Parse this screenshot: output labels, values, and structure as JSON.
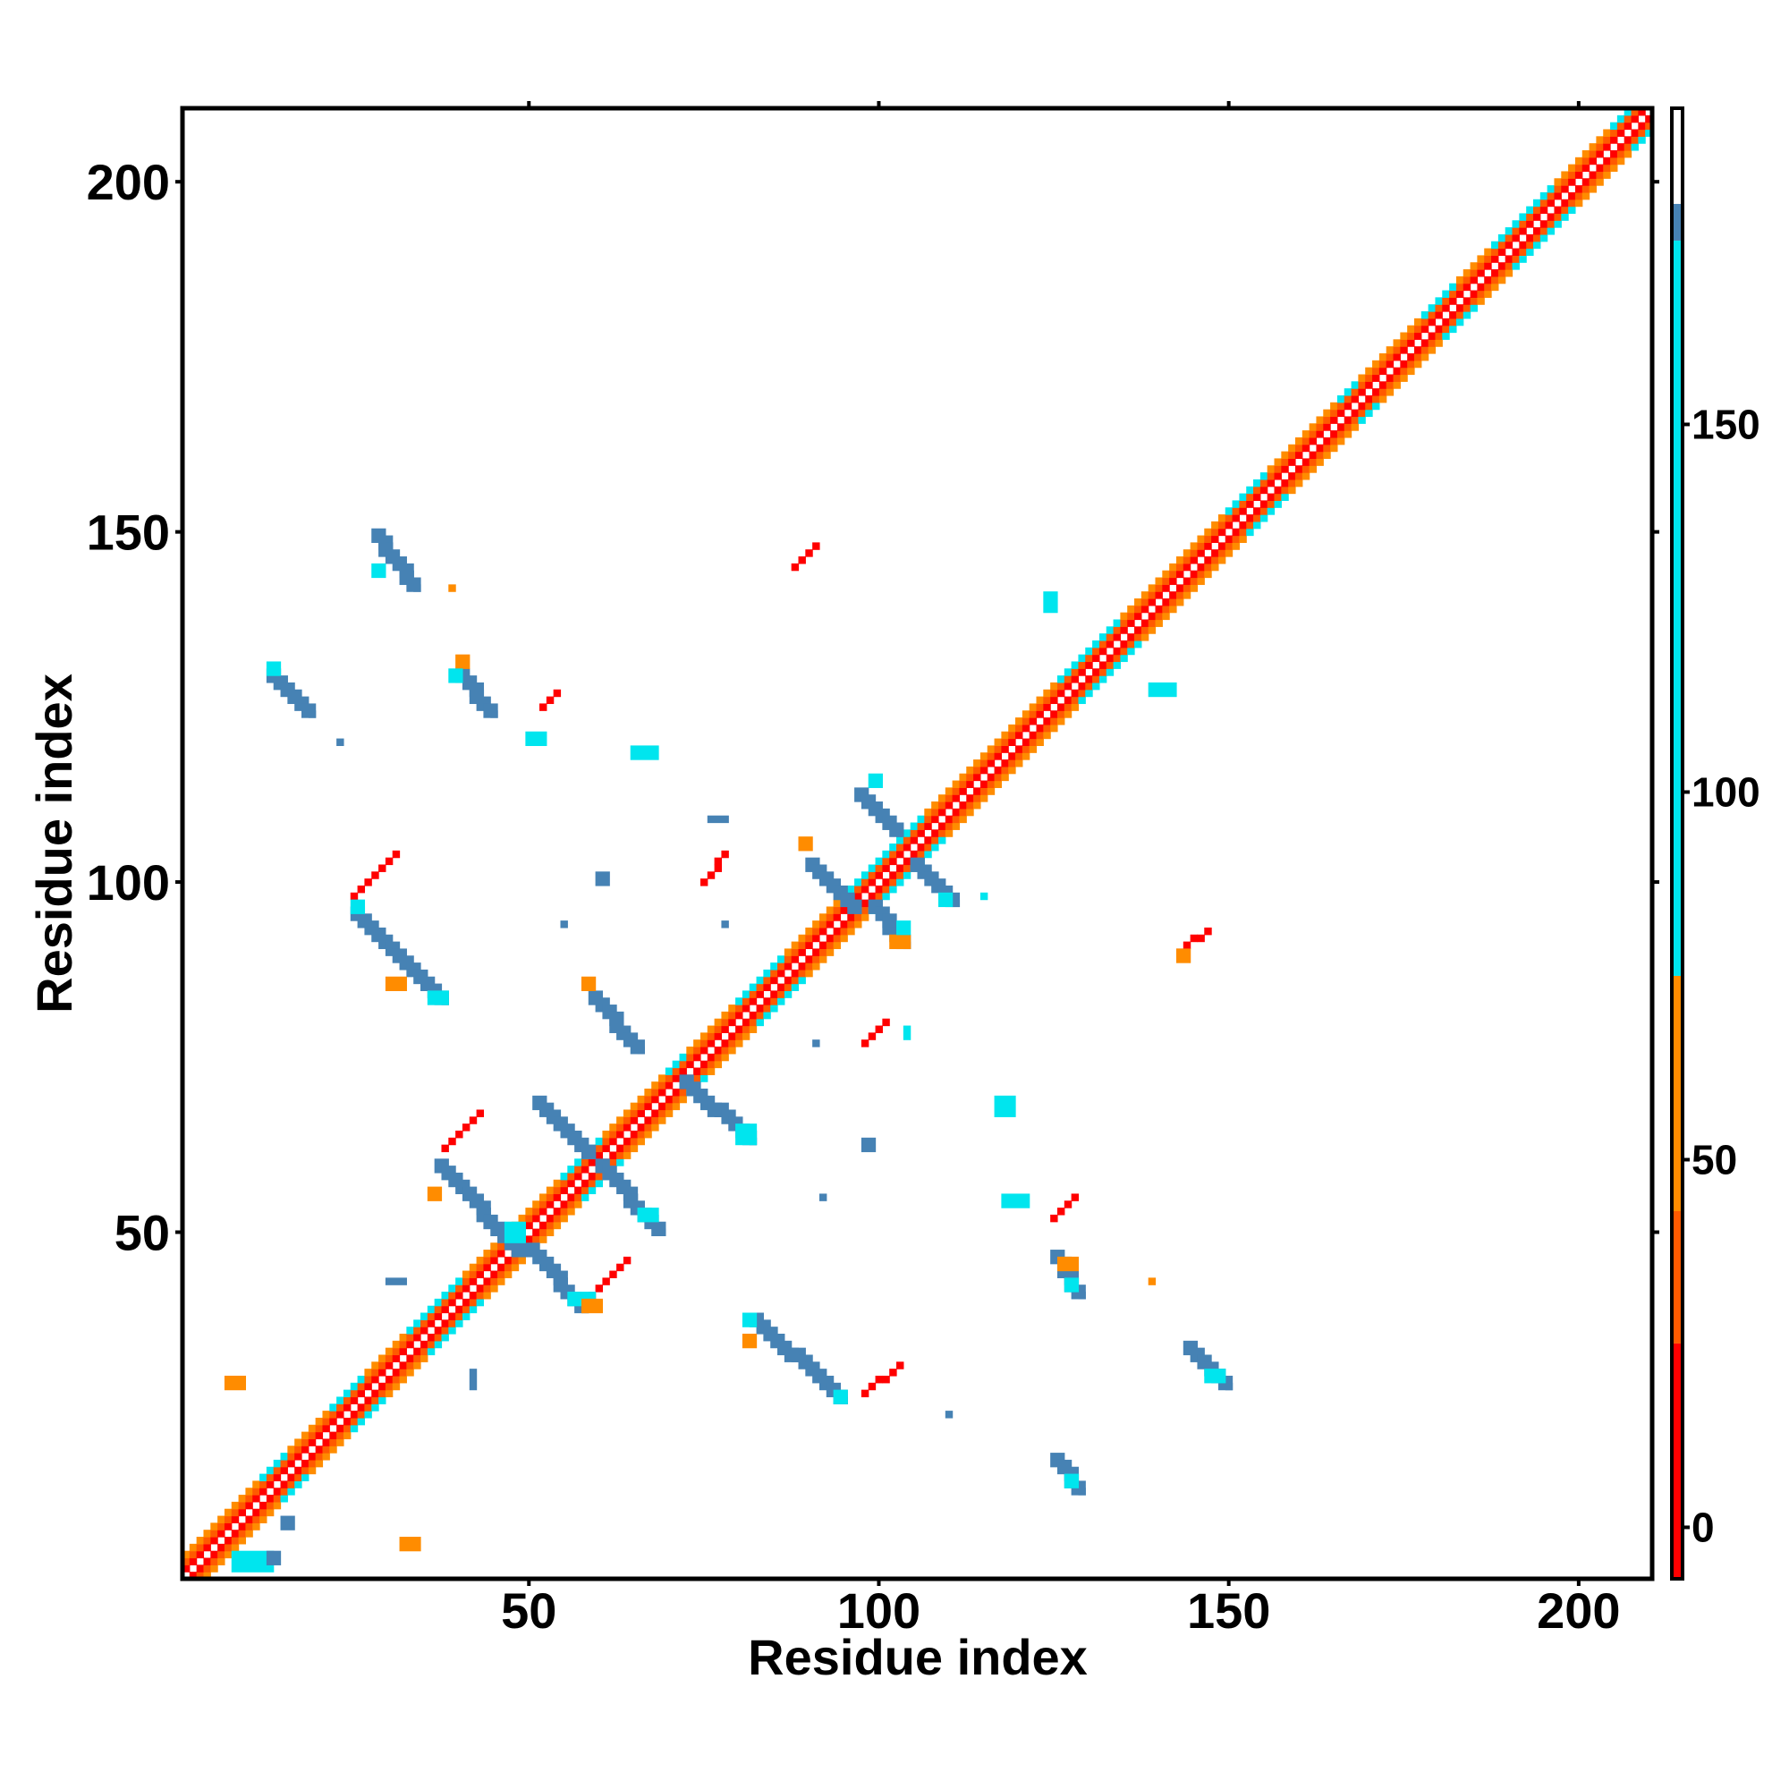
{
  "chart_data": {
    "type": "heatmap",
    "title": "",
    "xlabel": "Residue index",
    "ylabel": "Residue index",
    "xlim": [
      1,
      210
    ],
    "ylim": [
      1,
      210
    ],
    "xticks": [
      50,
      100,
      150,
      200
    ],
    "yticks": [
      50,
      100,
      150,
      200
    ],
    "grid": false,
    "legend": "none",
    "colorbar": {
      "ticks": [
        0,
        50,
        100,
        150
      ],
      "range": [
        -7,
        193
      ],
      "bands": [
        {
          "from": -7,
          "to": 25,
          "color": "#ff0000"
        },
        {
          "from": 25,
          "to": 43,
          "color": "#ff5a00"
        },
        {
          "from": 43,
          "to": 75,
          "color": "#ff8c00"
        },
        {
          "from": 75,
          "to": 175,
          "color": "#00e5ee"
        },
        {
          "from": 175,
          "to": 180,
          "color": "#4682b4"
        },
        {
          "from": 180,
          "to": 193,
          "color": "#ffffff"
        }
      ]
    },
    "colors": {
      "diag_core": "#ff0000",
      "diag_mid": "#ff5a00",
      "diag_outer": "#ff8c00",
      "contact_strong": "#4682b4",
      "contact_weak": "#00e5ee",
      "short_range": "#ff0000",
      "short_range_orange": "#ff8c00"
    },
    "diagonal_band": {
      "from": 1,
      "to": 210
    },
    "cyan_on_diagonal": [
      [
        12,
        15
      ],
      [
        22,
        26
      ],
      [
        33,
        40
      ],
      [
        55,
        60
      ],
      [
        70,
        72
      ],
      [
        80,
        86
      ],
      [
        96,
        106
      ],
      [
        126,
        134
      ],
      [
        150,
        155
      ],
      [
        166,
        168
      ],
      [
        178,
        182
      ],
      [
        188,
        196
      ],
      [
        205,
        210
      ]
    ],
    "segments": [
      {
        "x1": 28,
        "y1": 150,
        "x2": 33,
        "y2": 143,
        "c": "contact_strong"
      },
      {
        "x1": 13,
        "y1": 130,
        "x2": 18,
        "y2": 125,
        "c": "contact_strong"
      },
      {
        "x1": 40,
        "y1": 130,
        "x2": 44,
        "y2": 125,
        "c": "contact_strong"
      },
      {
        "x1": 25,
        "y1": 96,
        "x2": 37,
        "y2": 84,
        "c": "contact_strong"
      },
      {
        "x1": 51,
        "y1": 69,
        "x2": 58,
        "y2": 62,
        "c": "contact_strong"
      },
      {
        "x1": 37,
        "y1": 60,
        "x2": 48,
        "y2": 48,
        "c": "contact_strong"
      },
      {
        "x1": 50,
        "y1": 48,
        "x2": 57,
        "y2": 40,
        "c": "contact_strong"
      },
      {
        "x1": 60,
        "y1": 60,
        "x2": 68,
        "y2": 51,
        "c": "contact_strong"
      },
      {
        "x1": 59,
        "y1": 84,
        "x2": 65,
        "y2": 77,
        "c": "contact_strong"
      },
      {
        "x1": 72,
        "y1": 72,
        "x2": 81,
        "y2": 64,
        "c": "contact_strong"
      },
      {
        "x1": 82,
        "y1": 38,
        "x2": 94,
        "y2": 27,
        "c": "contact_strong"
      },
      {
        "x1": 90,
        "y1": 103,
        "x2": 96,
        "y2": 97,
        "c": "contact_strong"
      },
      {
        "x1": 99,
        "y1": 97,
        "x2": 103,
        "y2": 92,
        "c": "contact_strong"
      },
      {
        "x1": 97,
        "y1": 113,
        "x2": 102,
        "y2": 108,
        "c": "contact_strong"
      },
      {
        "x1": 105,
        "y1": 103,
        "x2": 110,
        "y2": 98,
        "c": "contact_strong"
      },
      {
        "x1": 125,
        "y1": 47,
        "x2": 128,
        "y2": 42,
        "c": "contact_strong"
      },
      {
        "x1": 144,
        "y1": 34,
        "x2": 149,
        "y2": 29,
        "c": "contact_strong"
      },
      {
        "x1": 125,
        "y1": 18,
        "x2": 128,
        "y2": 14,
        "c": "contact_strong"
      },
      {
        "x1": 91,
        "y1": 148,
        "x2": 88,
        "y2": 145,
        "c": "short_range"
      },
      {
        "x1": 31,
        "y1": 104,
        "x2": 25,
        "y2": 98,
        "c": "short_range"
      },
      {
        "x1": 43,
        "y1": 67,
        "x2": 38,
        "y2": 62,
        "c": "short_range"
      },
      {
        "x1": 64,
        "y1": 46,
        "x2": 58,
        "y2": 40,
        "c": "short_range"
      },
      {
        "x1": 103,
        "y1": 31,
        "x2": 98,
        "y2": 27,
        "c": "short_range"
      },
      {
        "x1": 147,
        "y1": 93,
        "x2": 143,
        "y2": 90,
        "c": "short_range"
      },
      {
        "x1": 128,
        "y1": 55,
        "x2": 125,
        "y2": 52,
        "c": "short_range"
      },
      {
        "x1": 54,
        "y1": 127,
        "x2": 52,
        "y2": 125,
        "c": "short_range"
      },
      {
        "x1": 78,
        "y1": 104,
        "x2": 75,
        "y2": 100,
        "c": "short_range"
      },
      {
        "x1": 101,
        "y1": 80,
        "x2": 98,
        "y2": 77,
        "c": "short_range"
      }
    ],
    "patches": [
      {
        "x": 8,
        "y": 2,
        "w": 6,
        "h": 3,
        "c": "contact_weak"
      },
      {
        "x": 13,
        "y": 3,
        "w": 2,
        "h": 2,
        "c": "contact_strong"
      },
      {
        "x": 28,
        "y": 144,
        "w": 2,
        "h": 2,
        "c": "contact_weak"
      },
      {
        "x": 13,
        "y": 130,
        "w": 2,
        "h": 2,
        "c": "contact_weak"
      },
      {
        "x": 40,
        "y": 131,
        "w": 2,
        "h": 2,
        "c": "short_range_orange"
      },
      {
        "x": 39,
        "y": 129,
        "w": 2,
        "h": 2,
        "c": "contact_weak"
      },
      {
        "x": 30,
        "y": 85,
        "w": 3,
        "h": 2,
        "c": "short_range_orange"
      },
      {
        "x": 36,
        "y": 83,
        "w": 3,
        "h": 2,
        "c": "contact_weak"
      },
      {
        "x": 25,
        "y": 96,
        "w": 2,
        "h": 2,
        "c": "contact_weak"
      },
      {
        "x": 58,
        "y": 85,
        "w": 2,
        "h": 2,
        "c": "short_range_orange"
      },
      {
        "x": 47,
        "y": 49,
        "w": 3,
        "h": 3,
        "c": "contact_weak"
      },
      {
        "x": 56,
        "y": 40,
        "w": 4,
        "h": 2,
        "c": "contact_weak"
      },
      {
        "x": 58,
        "y": 39,
        "w": 3,
        "h": 2,
        "c": "short_range_orange"
      },
      {
        "x": 66,
        "y": 52,
        "w": 3,
        "h": 2,
        "c": "contact_weak"
      },
      {
        "x": 80,
        "y": 63,
        "w": 3,
        "h": 3,
        "c": "contact_weak"
      },
      {
        "x": 81,
        "y": 37,
        "w": 2,
        "h": 2,
        "c": "contact_weak"
      },
      {
        "x": 81,
        "y": 34,
        "w": 2,
        "h": 2,
        "c": "short_range_orange"
      },
      {
        "x": 94,
        "y": 26,
        "w": 2,
        "h": 2,
        "c": "contact_weak"
      },
      {
        "x": 89,
        "y": 105,
        "w": 2,
        "h": 2,
        "c": "short_range_orange"
      },
      {
        "x": 102,
        "y": 91,
        "w": 3,
        "h": 2,
        "c": "short_range_orange"
      },
      {
        "x": 103,
        "y": 93,
        "w": 2,
        "h": 2,
        "c": "contact_weak"
      },
      {
        "x": 109,
        "y": 97,
        "w": 2,
        "h": 2,
        "c": "contact_weak"
      },
      {
        "x": 126,
        "y": 45,
        "w": 3,
        "h": 2,
        "c": "short_range_orange"
      },
      {
        "x": 127,
        "y": 42,
        "w": 2,
        "h": 2,
        "c": "contact_weak"
      },
      {
        "x": 143,
        "y": 89,
        "w": 2,
        "h": 2,
        "c": "short_range_orange"
      },
      {
        "x": 147,
        "y": 29,
        "w": 3,
        "h": 2,
        "c": "contact_weak"
      },
      {
        "x": 127,
        "y": 14,
        "w": 2,
        "h": 2,
        "c": "contact_weak"
      },
      {
        "x": 118,
        "y": 54,
        "w": 4,
        "h": 2,
        "c": "contact_weak"
      },
      {
        "x": 117,
        "y": 67,
        "w": 3,
        "h": 3,
        "c": "contact_weak"
      },
      {
        "x": 99,
        "y": 114,
        "w": 2,
        "h": 2,
        "c": "contact_weak"
      },
      {
        "x": 124,
        "y": 139,
        "w": 2,
        "h": 3,
        "c": "contact_weak"
      },
      {
        "x": 139,
        "y": 127,
        "w": 4,
        "h": 2,
        "c": "contact_weak"
      },
      {
        "x": 65,
        "y": 118,
        "w": 4,
        "h": 2,
        "c": "contact_weak"
      },
      {
        "x": 50,
        "y": 120,
        "w": 3,
        "h": 2,
        "c": "contact_weak"
      },
      {
        "x": 76,
        "y": 109,
        "w": 3,
        "h": 1,
        "c": "contact_strong"
      },
      {
        "x": 60,
        "y": 100,
        "w": 2,
        "h": 2,
        "c": "contact_strong"
      },
      {
        "x": 104,
        "y": 78,
        "w": 1,
        "h": 2,
        "c": "contact_weak"
      },
      {
        "x": 98,
        "y": 62,
        "w": 2,
        "h": 2,
        "c": "contact_strong"
      },
      {
        "x": 7,
        "y": 28,
        "w": 3,
        "h": 2,
        "c": "short_range_orange"
      },
      {
        "x": 32,
        "y": 5,
        "w": 3,
        "h": 2,
        "c": "short_range_orange"
      },
      {
        "x": 36,
        "y": 55,
        "w": 2,
        "h": 2,
        "c": "short_range_orange"
      },
      {
        "x": 139,
        "y": 43,
        "w": 1,
        "h": 1,
        "c": "short_range_orange"
      },
      {
        "x": 39,
        "y": 142,
        "w": 1,
        "h": 1,
        "c": "short_range_orange"
      },
      {
        "x": 30,
        "y": 43,
        "w": 3,
        "h": 1,
        "c": "contact_strong"
      },
      {
        "x": 42,
        "y": 28,
        "w": 1,
        "h": 3,
        "c": "contact_strong"
      },
      {
        "x": 115,
        "y": 98,
        "w": 1,
        "h": 1,
        "c": "contact_weak"
      },
      {
        "x": 110,
        "y": 24,
        "w": 1,
        "h": 1,
        "c": "contact_strong"
      },
      {
        "x": 92,
        "y": 55,
        "w": 1,
        "h": 1,
        "c": "contact_strong"
      },
      {
        "x": 91,
        "y": 77,
        "w": 1,
        "h": 1,
        "c": "contact_strong"
      },
      {
        "x": 78,
        "y": 94,
        "w": 1,
        "h": 1,
        "c": "contact_strong"
      },
      {
        "x": 55,
        "y": 94,
        "w": 1,
        "h": 1,
        "c": "contact_strong"
      },
      {
        "x": 23,
        "y": 120,
        "w": 1,
        "h": 1,
        "c": "contact_strong"
      },
      {
        "x": 15,
        "y": 8,
        "w": 2,
        "h": 2,
        "c": "contact_strong"
      }
    ]
  }
}
